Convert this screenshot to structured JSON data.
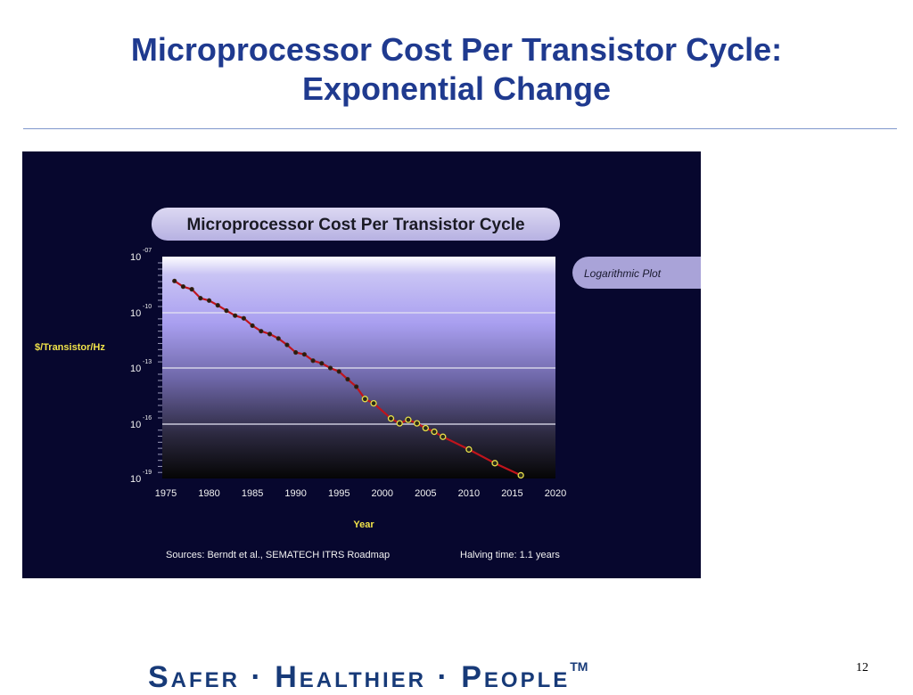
{
  "slide": {
    "title_line1": "Microprocessor Cost Per Transistor Cycle:",
    "title_line2": "Exponential Change",
    "footer_brand": "Safer · Healthier · People",
    "footer_tm": "TM",
    "page_number": "12"
  },
  "chart_data": {
    "type": "line",
    "title": "Microprocessor Cost  Per Transistor Cycle",
    "xlabel": "Year",
    "ylabel": "$/Transistor/Hz",
    "scale_y": "log",
    "xlim": [
      1975,
      2020
    ],
    "x_ticks": [
      1975,
      1980,
      1985,
      1990,
      1995,
      2000,
      2005,
      2010,
      2015,
      2020
    ],
    "y_ticks": [
      {
        "base": "10",
        "exp": "-07",
        "value": 1e-07
      },
      {
        "base": "10",
        "exp": "-10",
        "value": 1e-10
      },
      {
        "base": "10",
        "exp": "-13",
        "value": 1e-13
      },
      {
        "base": "10",
        "exp": "-16",
        "value": 1e-16
      },
      {
        "base": "10",
        "exp": "-19",
        "value": 1e-19
      }
    ],
    "grid": true,
    "annotation": "Logarithmic Plot",
    "source_note": "Sources: Berndt et al., SEMATECH ITRS Roadmap",
    "halving_note": "Halving time: 1.1 years",
    "series": [
      {
        "color": "#c0141c",
        "marker_color_historical": "#2a1a10",
        "marker_color_projected": "#e8e04a",
        "x": [
          1976,
          1977,
          1978,
          1979,
          1980,
          1981,
          1982,
          1983,
          1984,
          1985,
          1986,
          1987,
          1988,
          1989,
          1990,
          1991,
          1992,
          1993,
          1994,
          1995,
          1996,
          1997,
          1998,
          1999,
          2001,
          2002,
          2003,
          2004,
          2005,
          2006,
          2007,
          2010,
          2013,
          2016
        ],
        "y": [
          5e-09,
          2.5e-09,
          1.8e-09,
          6e-10,
          4.5e-10,
          2.5e-10,
          1.3e-10,
          7e-11,
          5e-11,
          2e-11,
          1e-11,
          7e-12,
          4e-12,
          1.8e-12,
          7e-13,
          5.5e-13,
          2.5e-13,
          1.8e-13,
          1e-13,
          6.5e-14,
          2.5e-14,
          1e-14,
          2.2e-15,
          1.3e-15,
          2e-16,
          1.1e-16,
          1.7e-16,
          1.1e-16,
          6e-17,
          3.8e-17,
          2e-17,
          4e-18,
          7e-19,
          1.5e-19
        ],
        "projected_from_index": 22
      }
    ]
  }
}
